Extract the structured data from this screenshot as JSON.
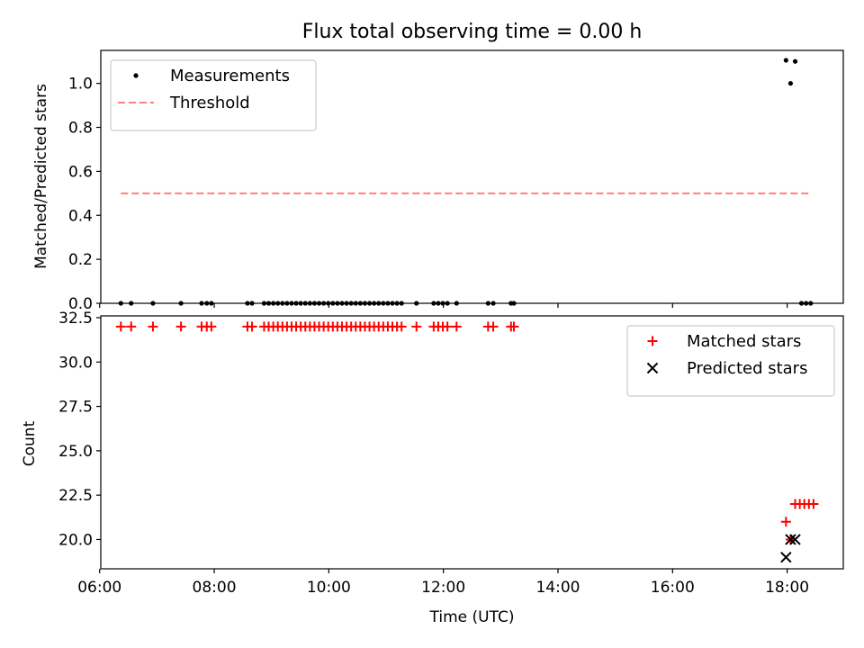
{
  "chart_data": [
    {
      "type": "scatter",
      "title": "Flux total observing time = 0.00 h",
      "ylabel": "Matched/Predicted stars",
      "xlabel": "",
      "xlim": [
        6.02,
        18.98
      ],
      "ylim": [
        0.0,
        1.15
      ],
      "x_ticks": [
        6,
        8,
        10,
        12,
        14,
        16,
        18
      ],
      "y_ticks": [
        0.0,
        0.2,
        0.4,
        0.6,
        0.8,
        1.0
      ],
      "y_tick_labels": [
        "0.0",
        "0.2",
        "0.4",
        "0.6",
        "0.8",
        "1.0"
      ],
      "legend_position": "upper-left",
      "series": [
        {
          "name": "Measurements",
          "marker": "dot",
          "color": "#000000",
          "x": [
            6.37,
            6.55,
            6.93,
            7.42,
            7.78,
            7.87,
            7.95,
            8.58,
            8.66,
            8.87,
            8.95,
            9.03,
            9.11,
            9.19,
            9.27,
            9.35,
            9.43,
            9.51,
            9.59,
            9.67,
            9.75,
            9.83,
            9.91,
            9.99,
            10.07,
            10.15,
            10.23,
            10.31,
            10.39,
            10.47,
            10.55,
            10.63,
            10.71,
            10.79,
            10.87,
            10.95,
            11.03,
            11.11,
            11.19,
            11.27,
            11.53,
            11.83,
            11.91,
            11.99,
            12.07,
            12.23,
            12.78,
            12.87,
            13.18,
            13.23,
            17.98,
            18.06,
            18.14,
            18.25,
            18.33,
            18.41
          ],
          "y": [
            0,
            0,
            0,
            0,
            0,
            0,
            0,
            0,
            0,
            0,
            0,
            0,
            0,
            0,
            0,
            0,
            0,
            0,
            0,
            0,
            0,
            0,
            0,
            0,
            0,
            0,
            0,
            0,
            0,
            0,
            0,
            0,
            0,
            0,
            0,
            0,
            0,
            0,
            0,
            0,
            0,
            0,
            0,
            0,
            0,
            0,
            0,
            0,
            0,
            0,
            1.105,
            1.0,
            1.1,
            0,
            0,
            0
          ]
        },
        {
          "name": "Threshold",
          "marker": "dashed-line",
          "color": "#ff7f7f",
          "x": [
            6.37,
            18.41
          ],
          "y": [
            0.5,
            0.5
          ]
        }
      ]
    },
    {
      "type": "scatter",
      "title": "",
      "xlabel": "Time (UTC)",
      "ylabel": "Count",
      "xlim": [
        6.02,
        18.98
      ],
      "ylim": [
        18.35,
        32.6
      ],
      "x_ticks": [
        6,
        8,
        10,
        12,
        14,
        16,
        18
      ],
      "x_tick_labels": [
        "06:00",
        "08:00",
        "10:00",
        "12:00",
        "14:00",
        "16:00",
        "18:00"
      ],
      "y_ticks": [
        20.0,
        22.5,
        25.0,
        27.5,
        30.0,
        32.5
      ],
      "y_tick_labels": [
        "20.0",
        "22.5",
        "25.0",
        "27.5",
        "30.0",
        "32.5"
      ],
      "legend_position": "upper-right",
      "series": [
        {
          "name": "Matched stars",
          "marker": "plus",
          "color": "#ff0000",
          "x": [
            6.37,
            6.55,
            6.93,
            7.42,
            7.78,
            7.87,
            7.95,
            8.58,
            8.66,
            8.87,
            8.95,
            9.03,
            9.11,
            9.19,
            9.27,
            9.35,
            9.43,
            9.51,
            9.59,
            9.67,
            9.75,
            9.83,
            9.91,
            9.99,
            10.07,
            10.15,
            10.23,
            10.31,
            10.39,
            10.47,
            10.55,
            10.63,
            10.71,
            10.79,
            10.87,
            10.95,
            11.03,
            11.11,
            11.19,
            11.27,
            11.53,
            11.83,
            11.91,
            11.99,
            12.07,
            12.23,
            12.78,
            12.87,
            13.18,
            13.23,
            17.98,
            18.06,
            18.14,
            18.22,
            18.3,
            18.38,
            18.46
          ],
          "y": [
            32,
            32,
            32,
            32,
            32,
            32,
            32,
            32,
            32,
            32,
            32,
            32,
            32,
            32,
            32,
            32,
            32,
            32,
            32,
            32,
            32,
            32,
            32,
            32,
            32,
            32,
            32,
            32,
            32,
            32,
            32,
            32,
            32,
            32,
            32,
            32,
            32,
            32,
            32,
            32,
            32,
            32,
            32,
            32,
            32,
            32,
            32,
            32,
            32,
            32,
            21,
            20,
            22,
            22,
            22,
            22,
            22
          ]
        },
        {
          "name": "Predicted stars",
          "marker": "x",
          "color": "#000000",
          "x": [
            17.98,
            18.06,
            18.14
          ],
          "y": [
            19,
            20,
            20
          ]
        }
      ]
    }
  ]
}
